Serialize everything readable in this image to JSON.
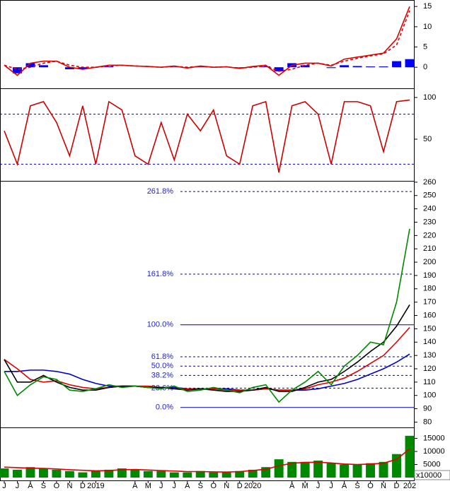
{
  "chart_data": [
    {
      "type": "line",
      "ylim": [
        -5.2,
        16.6
      ],
      "yticks": [
        0,
        5,
        10,
        15
      ],
      "series": [
        {
          "color": "#0000ff",
          "style": "bar",
          "values": [
            0,
            -1.5,
            1,
            0.5,
            0,
            -0.5,
            -0.5,
            0,
            0.2,
            0,
            0,
            0,
            0,
            0.1,
            -0.2,
            0.1,
            0,
            0,
            -0.1,
            0.2,
            0.2,
            -1,
            1,
            0.5,
            0,
            -0.2,
            0.5,
            0.3,
            0.2,
            0.2,
            1.5,
            2
          ]
        },
        {
          "color": "#e00000",
          "style": "dashed",
          "values": [
            0.5,
            -0.5,
            0,
            1,
            1.5,
            0.5,
            0,
            0,
            0.3,
            0.5,
            0.3,
            0.2,
            0,
            0.2,
            0,
            0.2,
            0,
            0.1,
            -0.2,
            0,
            0.3,
            -1,
            -0.5,
            0.5,
            1,
            0.5,
            1.5,
            2.2,
            2.8,
            3.3,
            5.5,
            14
          ]
        },
        {
          "color": "#e00000",
          "style": "solid",
          "values": [
            0.5,
            -2,
            1,
            1.5,
            1.5,
            0,
            -0.5,
            0,
            0.5,
            0.5,
            0.3,
            0.2,
            0,
            0.3,
            -0.2,
            0.3,
            0,
            0.1,
            -0.3,
            0.2,
            0.5,
            -2,
            0.5,
            1,
            1,
            0.3,
            2,
            2.5,
            3,
            3.5,
            7,
            15
          ]
        }
      ]
    },
    {
      "type": "line",
      "ylim": [
        0,
        111
      ],
      "yticks": [
        50,
        100
      ],
      "levels": [
        80,
        20
      ],
      "series": [
        {
          "color": "#cc0000",
          "style": "solid",
          "values": [
            60,
            20,
            90,
            95,
            70,
            30,
            90,
            20,
            95,
            85,
            30,
            20,
            70,
            25,
            80,
            60,
            85,
            30,
            20,
            90,
            95,
            10,
            90,
            95,
            80,
            20,
            95,
            95,
            90,
            35,
            95,
            97
          ]
        }
      ]
    },
    {
      "type": "line",
      "ylim": [
        76,
        261
      ],
      "yticks": [
        80,
        90,
        100,
        110,
        120,
        130,
        140,
        150,
        160,
        170,
        180,
        190,
        200,
        210,
        220,
        230,
        240,
        250,
        260
      ],
      "fib_levels": [
        {
          "label": "0.0%",
          "value": 91,
          "style": "solid"
        },
        {
          "label": "23.6%",
          "value": 105.5,
          "style": "dashed"
        },
        {
          "label": "38.2%",
          "value": 115,
          "style": "dashed"
        },
        {
          "label": "50.0%",
          "value": 122,
          "style": "dashed"
        },
        {
          "label": "61.8%",
          "value": 129,
          "style": "dashed"
        },
        {
          "label": "100.0%",
          "value": 153,
          "style": "solid"
        },
        {
          "label": "161.8%",
          "value": 191,
          "style": "dashed"
        },
        {
          "label": "261.8%",
          "value": 253,
          "style": "dashed"
        }
      ],
      "series": [
        {
          "color": "#0000cc",
          "style": "solid",
          "values": [
            118,
            118,
            119,
            119,
            118,
            116,
            112,
            109,
            107,
            107,
            107,
            106,
            106,
            106,
            105,
            105,
            105,
            105,
            104,
            104,
            105,
            104,
            104,
            104,
            105,
            107,
            109,
            112,
            116,
            120,
            125,
            131
          ]
        },
        {
          "color": "#dd0000",
          "style": "solid",
          "values": [
            127,
            120,
            112,
            110,
            111,
            108,
            106,
            105,
            106,
            107,
            107,
            107,
            106,
            105,
            105,
            105,
            105,
            104,
            104,
            104,
            105,
            104,
            104,
            105,
            108,
            110,
            113,
            118,
            124,
            130,
            140,
            151
          ]
        },
        {
          "color": "#000000",
          "style": "solid",
          "values": [
            127,
            110,
            110,
            115,
            110,
            106,
            104,
            104,
            106,
            107,
            107,
            106,
            106,
            105,
            104,
            105,
            104,
            103,
            103,
            104,
            106,
            103,
            103,
            106,
            110,
            112,
            118,
            125,
            133,
            140,
            152,
            168
          ]
        },
        {
          "color": "#008800",
          "style": "solid",
          "values": [
            118,
            100,
            108,
            114,
            112,
            104,
            103,
            105,
            108,
            106,
            107,
            106,
            105,
            107,
            103,
            104,
            106,
            104,
            102,
            106,
            108,
            95,
            104,
            110,
            118,
            108,
            122,
            130,
            140,
            138,
            170,
            225
          ]
        }
      ]
    },
    {
      "type": "bar",
      "ylim": [
        0,
        19200
      ],
      "yticks": [
        5000,
        10000,
        15000
      ],
      "unit_label": "x10000",
      "categories": [
        "J",
        "J",
        "A",
        "S",
        "O",
        "N",
        "D",
        "2019",
        null,
        null,
        "A",
        "M",
        "J",
        "J",
        "A",
        "S",
        "O",
        "N",
        "D",
        "2020",
        null,
        null,
        "A",
        "M",
        "J",
        "J",
        "A",
        "S",
        "O",
        "N",
        "D",
        "202"
      ],
      "series": [
        {
          "color": "#008800",
          "style": "bar",
          "values": [
            3500,
            3000,
            4000,
            3500,
            3000,
            2500,
            2000,
            2500,
            3000,
            3500,
            3000,
            2500,
            2500,
            2000,
            2000,
            2500,
            2000,
            2000,
            2500,
            3000,
            4000,
            7000,
            6000,
            6000,
            6500,
            5500,
            5000,
            5000,
            5500,
            6000,
            9000,
            16000
          ]
        },
        {
          "color": "#dd0000",
          "style": "solid",
          "values": [
            4000,
            3800,
            3600,
            3500,
            3300,
            3000,
            2800,
            2600,
            2700,
            3000,
            3100,
            2900,
            2700,
            2500,
            2300,
            2300,
            2200,
            2100,
            2300,
            2700,
            3200,
            4500,
            5500,
            5800,
            5900,
            5600,
            5200,
            5000,
            5200,
            5500,
            7000,
            11000
          ]
        }
      ]
    }
  ]
}
